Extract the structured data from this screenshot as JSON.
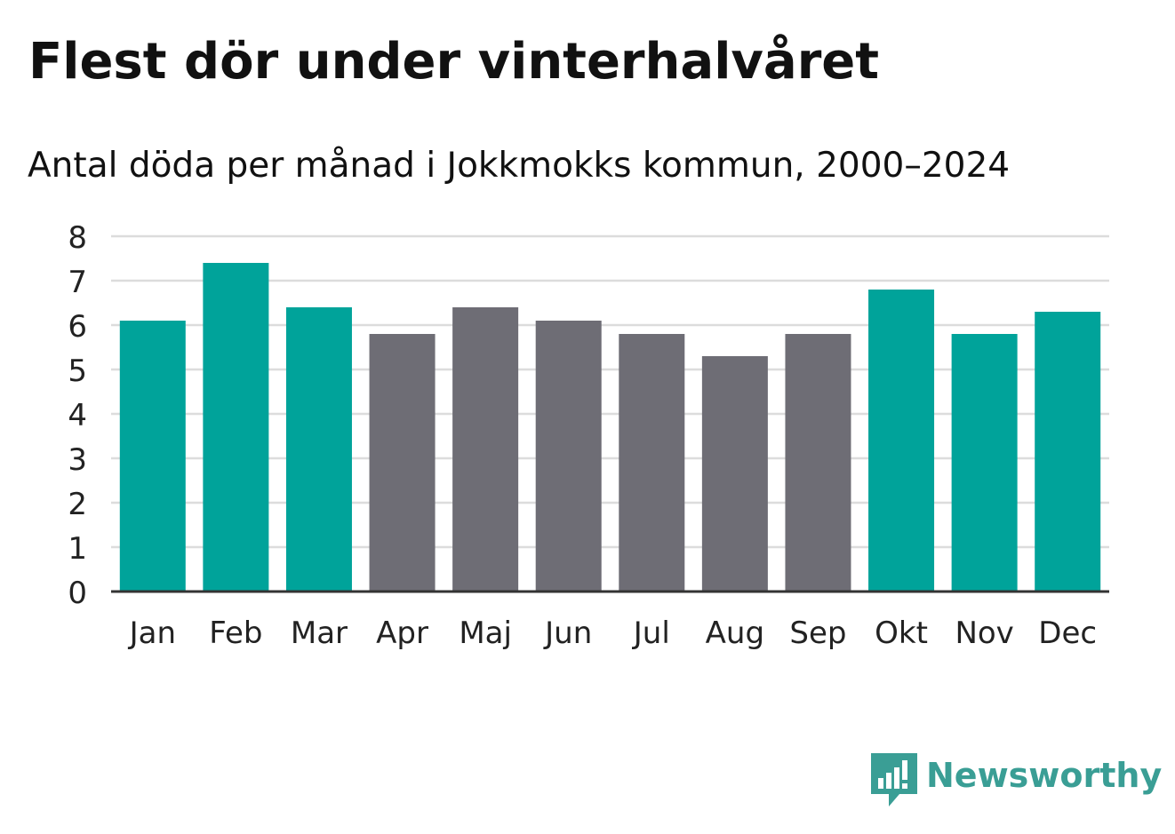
{
  "header": {
    "title": "Flest dör under vinterhalvåret",
    "subtitle": "Antal döda per månad i Jokkmokks kommun, 2000–2024"
  },
  "colors": {
    "winter": "#00a39a",
    "summer": "#6e6d75",
    "gridline": "#dcdcdc",
    "axis": "#333333",
    "tick_text": "#222222",
    "brand": "#3a9e95"
  },
  "chart_data": {
    "type": "bar",
    "title": "Flest dör under vinterhalvåret",
    "subtitle": "Antal döda per månad i Jokkmokks kommun, 2000–2024",
    "xlabel": "",
    "ylabel": "",
    "categories": [
      "Jan",
      "Feb",
      "Mar",
      "Apr",
      "Maj",
      "Jun",
      "Jul",
      "Aug",
      "Sep",
      "Okt",
      "Nov",
      "Dec"
    ],
    "values": [
      6.1,
      7.4,
      6.4,
      5.8,
      6.4,
      6.1,
      5.8,
      5.3,
      5.8,
      6.8,
      5.8,
      6.3
    ],
    "series_group": [
      "winter",
      "winter",
      "winter",
      "summer",
      "summer",
      "summer",
      "summer",
      "summer",
      "summer",
      "winter",
      "winter",
      "winter"
    ],
    "ylim": [
      0,
      8
    ],
    "yticks": [
      0,
      1,
      2,
      3,
      4,
      5,
      6,
      7,
      8
    ],
    "grid": true,
    "legend": "none"
  },
  "brand": {
    "name": "Newsworthy",
    "icon": "newsworthy-logo-icon"
  }
}
